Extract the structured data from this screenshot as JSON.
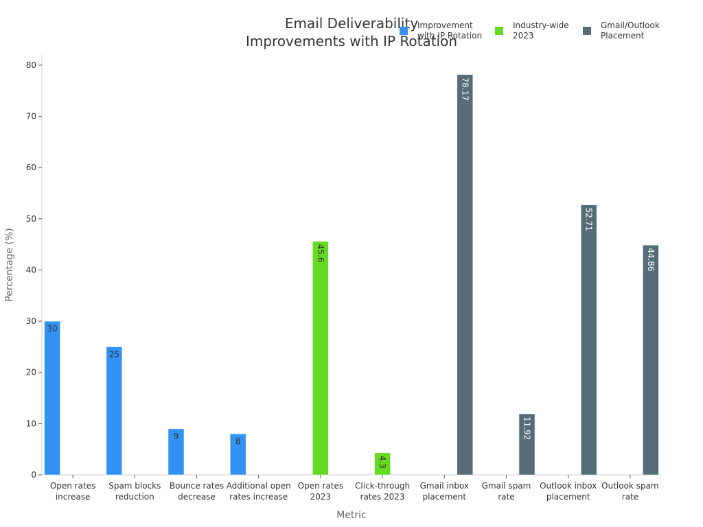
{
  "chart_data": {
    "type": "bar",
    "title_lines": [
      "Email Deliverability",
      "Improvements with IP Rotation"
    ],
    "xlabel": "Metric",
    "ylabel": "Percentage (%)",
    "ylim": [
      0,
      82
    ],
    "yticks": [
      0,
      10,
      20,
      30,
      40,
      50,
      60,
      70,
      80
    ],
    "grid": false,
    "legend_position": "top-right",
    "categories": [
      [
        "Open rates",
        "increase"
      ],
      [
        "Spam blocks",
        "reduction"
      ],
      [
        "Bounce rates",
        "decrease"
      ],
      [
        "Additional open",
        "rates increase"
      ],
      [
        "Open rates",
        "2023"
      ],
      [
        "Click-through",
        "rates 2023"
      ],
      [
        "Gmail inbox",
        "placement"
      ],
      [
        "Gmail spam",
        "rate"
      ],
      [
        "Outlook inbox",
        "placement"
      ],
      [
        "Outlook spam",
        "rate"
      ]
    ],
    "series": [
      {
        "name_lines": [
          "Improvement",
          "with IP Rotation"
        ],
        "color": "#3192f4",
        "label_color": "#333333",
        "values": [
          30,
          25,
          9,
          8,
          null,
          null,
          null,
          null,
          null,
          null
        ],
        "labels": [
          "30",
          "25",
          "9",
          "8",
          null,
          null,
          null,
          null,
          null,
          null
        ]
      },
      {
        "name_lines": [
          "Industry-wide",
          "2023"
        ],
        "color": "#66d923",
        "label_color": "#333333",
        "values": [
          null,
          null,
          null,
          null,
          45.6,
          4.3,
          null,
          null,
          null,
          null
        ],
        "labels": [
          null,
          null,
          null,
          null,
          "45.6",
          "4.3",
          null,
          null,
          null,
          null
        ]
      },
      {
        "name_lines": [
          "Gmail/Outlook",
          "Placement"
        ],
        "color": "#566d79",
        "label_color": "#ffffff",
        "values": [
          null,
          null,
          null,
          null,
          null,
          null,
          78.17,
          11.92,
          52.71,
          44.86
        ],
        "labels": [
          null,
          null,
          null,
          null,
          null,
          null,
          "78.17",
          "11.92",
          "52.71",
          "44.86"
        ]
      }
    ]
  }
}
